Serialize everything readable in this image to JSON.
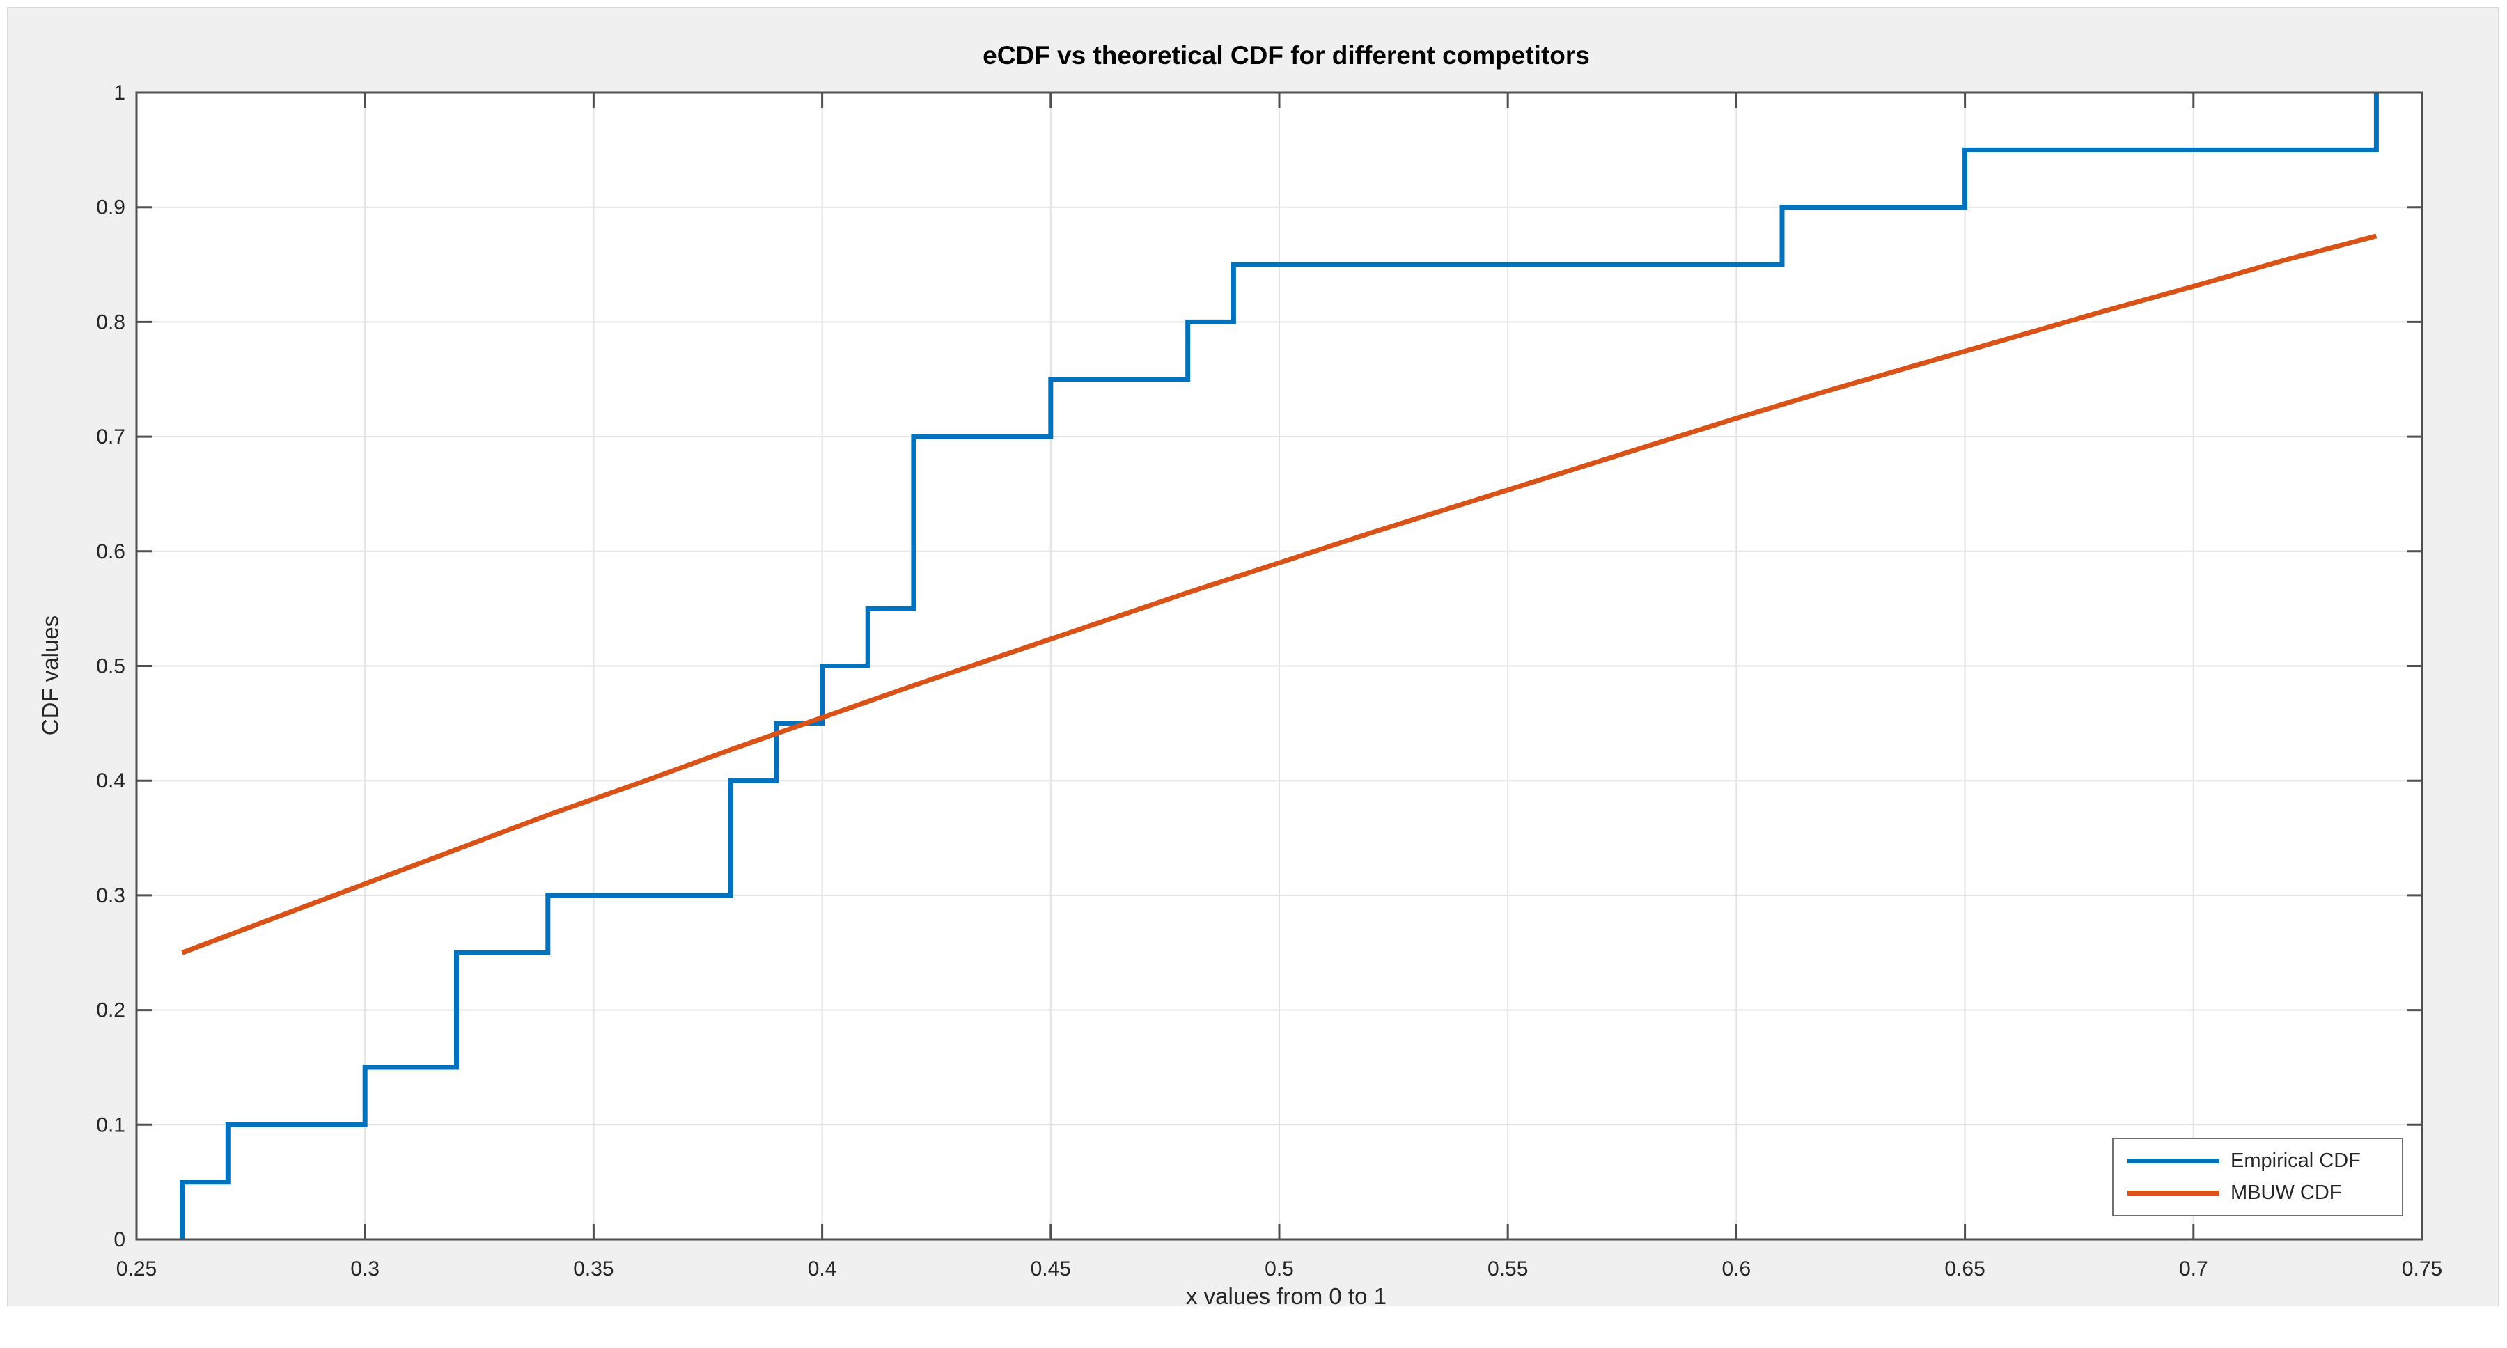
{
  "figure": {
    "background": "#F0F0F0",
    "plot_background": "#FFFFFF",
    "axis_color": "#4F4F4F",
    "grid_color": "#E3E3E3",
    "tick_label_color": "#262626"
  },
  "legend": {
    "entries": [
      {
        "label": "Empirical CDF",
        "color": "#0072BD"
      },
      {
        "label": "MBUW CDF",
        "color": "#D95319"
      }
    ],
    "position": "southeast-inside"
  },
  "chart_data": {
    "type": "line",
    "title": "eCDF vs theoretical CDF for different competitors",
    "xlabel": "x values from 0 to 1",
    "ylabel": "CDF values",
    "xlim": [
      0.25,
      0.75
    ],
    "ylim": [
      0,
      1
    ],
    "grid": true,
    "legend_position": "lower right",
    "x_ticks": [
      0.25,
      0.3,
      0.35,
      0.4,
      0.45,
      0.5,
      0.55,
      0.6,
      0.65,
      0.7,
      0.75
    ],
    "x_tick_labels": [
      "0.25",
      "0.3",
      "0.35",
      "0.4",
      "0.45",
      "0.5",
      "0.55",
      "0.6",
      "0.65",
      "0.7",
      "0.75"
    ],
    "y_ticks": [
      0,
      0.1,
      0.2,
      0.3,
      0.4,
      0.5,
      0.6,
      0.7,
      0.8,
      0.9,
      1
    ],
    "y_tick_labels": [
      "0",
      "0.1",
      "0.2",
      "0.3",
      "0.4",
      "0.5",
      "0.6",
      "0.7",
      "0.8",
      "0.9",
      "1"
    ],
    "series": [
      {
        "name": "Empirical CDF",
        "color": "#0072BD",
        "style": "step",
        "line_width": 7,
        "start": [
          0.26,
          0
        ],
        "steps": [
          [
            0.26,
            0.05
          ],
          [
            0.27,
            0.1
          ],
          [
            0.3,
            0.15
          ],
          [
            0.32,
            0.25
          ],
          [
            0.34,
            0.3
          ],
          [
            0.38,
            0.4
          ],
          [
            0.39,
            0.45
          ],
          [
            0.4,
            0.5
          ],
          [
            0.41,
            0.55
          ],
          [
            0.42,
            0.7
          ],
          [
            0.45,
            0.75
          ],
          [
            0.48,
            0.8
          ],
          [
            0.49,
            0.85
          ],
          [
            0.61,
            0.9
          ],
          [
            0.65,
            0.95
          ],
          [
            0.74,
            1.0
          ]
        ],
        "samples": [
          0.26,
          0.27,
          0.3,
          0.32,
          0.32,
          0.34,
          0.38,
          0.38,
          0.39,
          0.4,
          0.41,
          0.42,
          0.42,
          0.42,
          0.45,
          0.48,
          0.49,
          0.61,
          0.65,
          0.74
        ]
      },
      {
        "name": "MBUW CDF",
        "color": "#D95319",
        "style": "line",
        "line_width": 7,
        "points": [
          [
            0.26,
            0.25
          ],
          [
            0.28,
            0.28
          ],
          [
            0.3,
            0.31
          ],
          [
            0.32,
            0.34
          ],
          [
            0.34,
            0.37
          ],
          [
            0.36,
            0.398
          ],
          [
            0.38,
            0.427
          ],
          [
            0.4,
            0.455
          ],
          [
            0.42,
            0.483
          ],
          [
            0.44,
            0.51
          ],
          [
            0.46,
            0.537
          ],
          [
            0.48,
            0.564
          ],
          [
            0.5,
            0.59
          ],
          [
            0.52,
            0.616
          ],
          [
            0.54,
            0.641
          ],
          [
            0.56,
            0.666
          ],
          [
            0.58,
            0.691
          ],
          [
            0.6,
            0.716
          ],
          [
            0.62,
            0.74
          ],
          [
            0.64,
            0.763
          ],
          [
            0.66,
            0.786
          ],
          [
            0.68,
            0.809
          ],
          [
            0.7,
            0.831
          ],
          [
            0.72,
            0.854
          ],
          [
            0.74,
            0.875
          ]
        ]
      }
    ]
  }
}
